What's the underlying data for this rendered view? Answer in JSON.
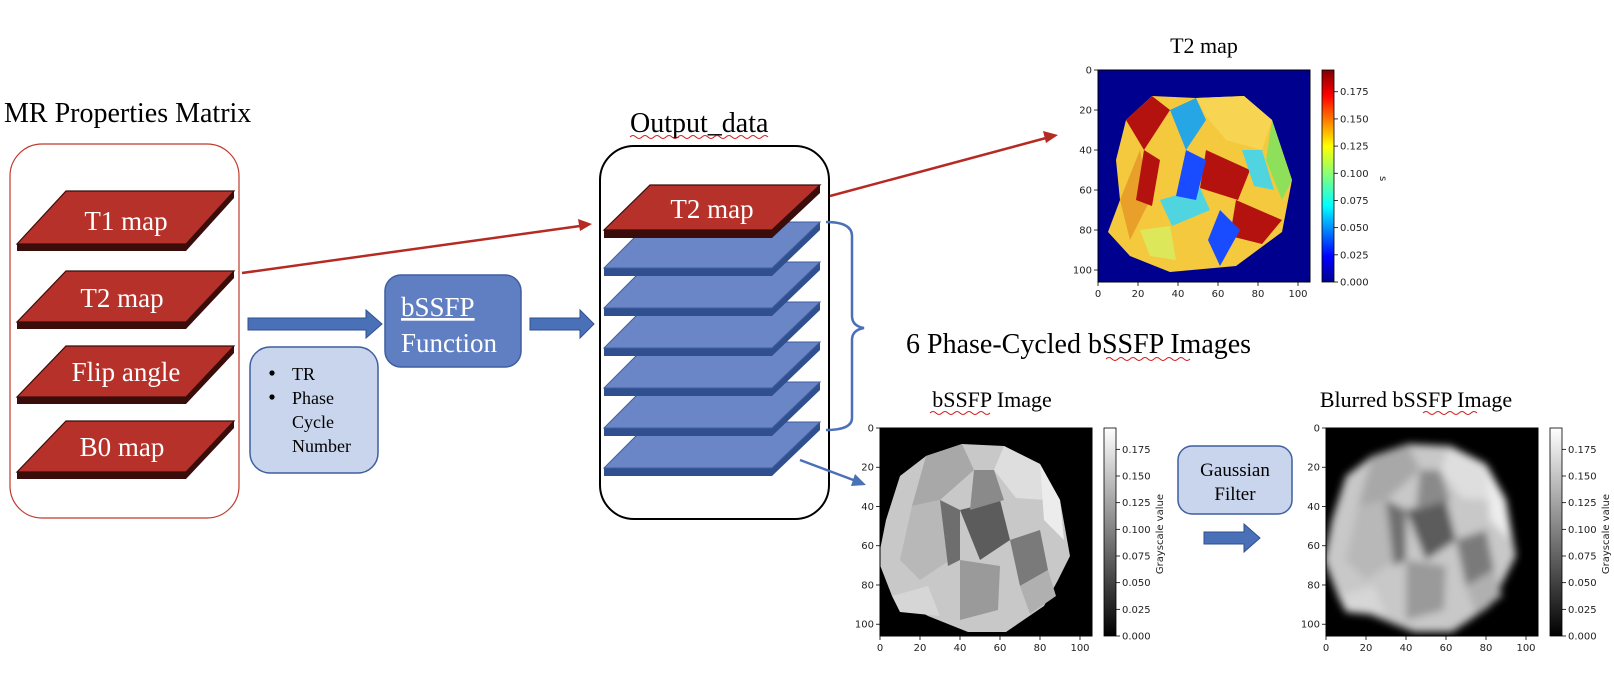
{
  "left_panel": {
    "title": "MR Properties Matrix",
    "layers": [
      "T1 map",
      "T2 map",
      "Flip angle",
      "B0 map"
    ]
  },
  "params_box": {
    "items": [
      "TR",
      "Phase Cycle Number"
    ]
  },
  "function_box": {
    "line1": "bSSFP",
    "line2": "Function"
  },
  "output": {
    "title": "Output_data",
    "top_layer": "T2 map",
    "blue_layer_count": 6
  },
  "phase_cycled_label": "6 Phase-Cycled bSSFP Images",
  "gaussian_box": {
    "line1": "Gaussian",
    "line2": "Filter"
  },
  "plots": {
    "t2": {
      "title": "T2 map",
      "x_ticks": [
        "0",
        "20",
        "40",
        "60",
        "80",
        "100"
      ],
      "y_ticks": [
        "0",
        "20",
        "40",
        "60",
        "80",
        "100"
      ],
      "cbar_ticks": [
        "0.000",
        "0.025",
        "0.050",
        "0.075",
        "0.100",
        "0.125",
        "0.150",
        "0.175"
      ],
      "cbar_label": "s",
      "colormap": "jet"
    },
    "bssfp": {
      "title": "bSSFP Image",
      "x_ticks": [
        "0",
        "20",
        "40",
        "60",
        "80",
        "100"
      ],
      "y_ticks": [
        "0",
        "20",
        "40",
        "60",
        "80",
        "100"
      ],
      "cbar_ticks": [
        "0.000",
        "0.025",
        "0.050",
        "0.075",
        "0.100",
        "0.125",
        "0.150",
        "0.175"
      ],
      "cbar_label": "Grayscale value",
      "colormap": "gray"
    },
    "blurred": {
      "title": "Blurred  bSSFP Image",
      "x_ticks": [
        "0",
        "20",
        "40",
        "60",
        "80",
        "100"
      ],
      "y_ticks": [
        "0",
        "20",
        "40",
        "60",
        "80",
        "100"
      ],
      "cbar_ticks": [
        "0.000",
        "0.025",
        "0.050",
        "0.075",
        "0.100",
        "0.125",
        "0.150",
        "0.175"
      ],
      "cbar_label": "Grayscale value",
      "colormap": "gray"
    }
  },
  "colors": {
    "red_layer": "#b5312a",
    "blue_layer": "#6a86c7",
    "arrow_blue": "#4a70b8",
    "arrow_red": "#b52a22",
    "box_fill_light": "#c9d5ec",
    "box_fill_dark": "#5f7fc2",
    "box_border": "#3f5f9f",
    "jet_background": "#00008f"
  }
}
